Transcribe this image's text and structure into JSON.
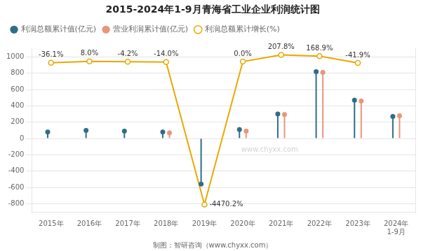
{
  "chart_data": {
    "type": "bar",
    "title": "2015-2024年1-9月青海省工业企业利润统计图",
    "annotations": [
      "制图：智研咨询（www.chyxx.com）",
      "www.chyxx.com"
    ],
    "categories": [
      "2015年",
      "2016年",
      "2017年",
      "2018年",
      "2019年",
      "2020年",
      "2021年",
      "2022年",
      "2023年",
      "2024年\n1-9月"
    ],
    "series": [
      {
        "name": "利润总额累计值(亿元)",
        "type": "lollipop",
        "color": "#2E6E87",
        "marker": "o",
        "values": [
          80,
          100,
          90,
          80,
          -560,
          110,
          300,
          820,
          470,
          270
        ]
      },
      {
        "name": "营业利润累计值(亿元)",
        "type": "lollipop",
        "color": "#E8967A",
        "marker": "o",
        "values": [
          null,
          null,
          null,
          70,
          null,
          90,
          295,
          810,
          460,
          280
        ]
      },
      {
        "name": "利润总额累计增长(%)",
        "type": "line",
        "axis": "y2",
        "color": "#E8A800",
        "marker": "o",
        "values": [
          -36.1,
          8.0,
          -4.2,
          -14.0,
          -4470.2,
          0.0,
          207.8,
          168.9,
          -41.9,
          null
        ],
        "value_labels": [
          "-36.1%",
          "8.0%",
          "-4.2%",
          "-14.0%",
          "-4470.2%",
          "0.0%",
          "207.8%",
          "168.9%",
          "-41.9%",
          null
        ]
      }
    ],
    "ylim": [
      -900,
      1100
    ],
    "yticks": [
      -800,
      -600,
      -400,
      -200,
      0,
      200,
      400,
      600,
      800,
      1000
    ],
    "y2lim": [
      -4700,
      400
    ],
    "y2ticks": [],
    "grid": true,
    "legend": "upper left"
  }
}
